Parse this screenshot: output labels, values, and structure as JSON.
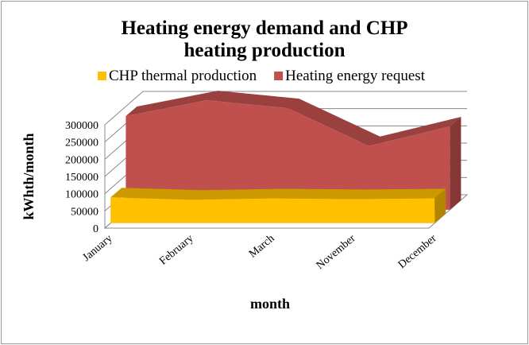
{
  "chart_data": {
    "type": "area3d",
    "title": "Heating energy demand and CHP heating production",
    "x_label": "month",
    "y_label": "kWhth/month",
    "categories": [
      "January",
      "February",
      "March",
      "November",
      "December"
    ],
    "series": [
      {
        "name": "CHP thermal production",
        "color": "#FFC000",
        "values": [
          75000,
          68000,
          72000,
          70000,
          72000
        ]
      },
      {
        "name": "Heating energy request",
        "color": "#C0504D",
        "values": [
          272000,
          318000,
          295000,
          185000,
          242000
        ]
      }
    ],
    "ylim": [
      0,
      300000
    ],
    "yticks": [
      0,
      50000,
      100000,
      150000,
      200000,
      250000,
      300000
    ],
    "grid": true,
    "legend": "top"
  }
}
